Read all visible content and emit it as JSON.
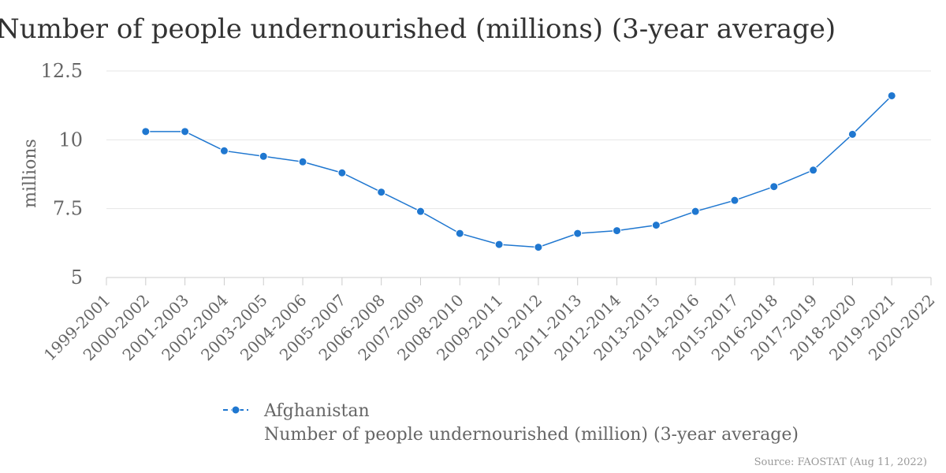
{
  "chart_data": {
    "type": "line",
    "title": "Number of people undernourished (millions) (3-year average)",
    "ylabel": "millions",
    "xlabel": "",
    "ylim": [
      5,
      12.5
    ],
    "yticks": [
      "5",
      "7.5",
      "10",
      "12.5"
    ],
    "ytick_values": [
      5,
      7.5,
      10,
      12.5
    ],
    "grid": true,
    "legend_position": "bottom",
    "categories": [
      "1999-2001",
      "2000-2002",
      "2001-2003",
      "2002-2004",
      "2003-2005",
      "2004-2006",
      "2005-2007",
      "2006-2008",
      "2007-2009",
      "2008-2010",
      "2009-2011",
      "2010-2012",
      "2011-2013",
      "2012-2014",
      "2013-2015",
      "2014-2016",
      "2015-2017",
      "2016-2018",
      "2017-2019",
      "2018-2020",
      "2019-2021",
      "2020-2022"
    ],
    "series": [
      {
        "name": "Afghanistan",
        "subtitle": "Number of people undernourished (million) (3-year average)",
        "color": "#1f77d0",
        "values": [
          null,
          10.3,
          10.3,
          9.6,
          9.4,
          9.2,
          8.8,
          8.1,
          7.4,
          6.6,
          6.2,
          6.1,
          6.6,
          6.7,
          6.9,
          7.4,
          7.8,
          8.3,
          8.9,
          10.2,
          11.6,
          null
        ]
      }
    ],
    "source": "Source: FAOSTAT (Aug 11, 2022)"
  }
}
